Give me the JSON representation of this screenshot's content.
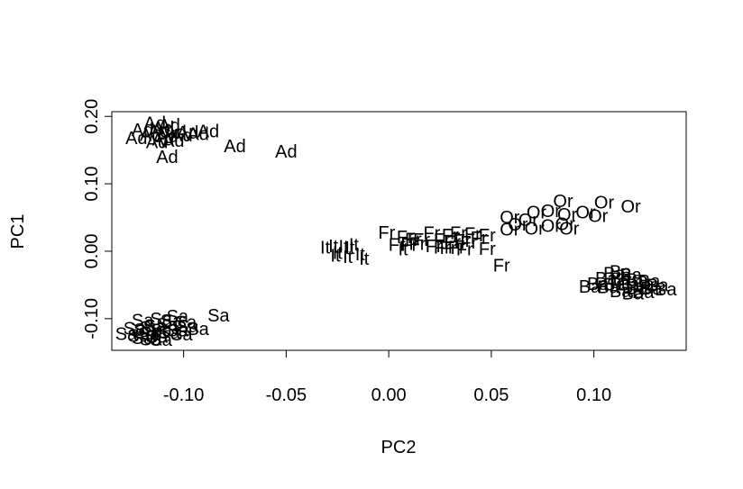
{
  "chart_data": {
    "type": "scatter",
    "title": "",
    "xlabel": "PC2",
    "ylabel": "PC1",
    "xlim": [
      -0.135,
      0.145
    ],
    "ylim": [
      -0.147,
      0.207
    ],
    "xticks": [
      {
        "value": -0.1,
        "label": "-0.10"
      },
      {
        "value": -0.05,
        "label": "-0.05"
      },
      {
        "value": 0.0,
        "label": "0.00"
      },
      {
        "value": 0.05,
        "label": "0.05"
      },
      {
        "value": 0.1,
        "label": "0.10"
      }
    ],
    "yticks": [
      {
        "value": -0.1,
        "label": "-0.10"
      },
      {
        "value": 0.0,
        "label": "0.00"
      },
      {
        "value": 0.1,
        "label": "0.10"
      },
      {
        "value": 0.2,
        "label": "0.20"
      }
    ],
    "grid": false,
    "point_style": "text-labels",
    "groups": [
      {
        "label": "Ad",
        "points": [
          [
            -0.114,
            0.19
          ],
          [
            -0.107,
            0.187
          ],
          [
            -0.11,
            0.183
          ],
          [
            -0.12,
            0.18
          ],
          [
            -0.112,
            0.178
          ],
          [
            -0.104,
            0.177
          ],
          [
            -0.098,
            0.176
          ],
          [
            -0.093,
            0.174
          ],
          [
            -0.116,
            0.173
          ],
          [
            -0.101,
            0.172
          ],
          [
            -0.108,
            0.171
          ],
          [
            -0.088,
            0.178
          ],
          [
            -0.123,
            0.168
          ],
          [
            -0.11,
            0.166
          ],
          [
            -0.105,
            0.164
          ],
          [
            -0.113,
            0.162
          ],
          [
            -0.075,
            0.156
          ],
          [
            -0.05,
            0.148
          ],
          [
            -0.108,
            0.14
          ]
        ]
      },
      {
        "label": "Sa",
        "points": [
          [
            -0.083,
            -0.095
          ],
          [
            -0.103,
            -0.096
          ],
          [
            -0.111,
            -0.1
          ],
          [
            -0.12,
            -0.102
          ],
          [
            -0.106,
            -0.103
          ],
          [
            -0.099,
            -0.105
          ],
          [
            -0.108,
            -0.108
          ],
          [
            -0.114,
            -0.11
          ],
          [
            -0.098,
            -0.111
          ],
          [
            -0.116,
            -0.113
          ],
          [
            -0.124,
            -0.114
          ],
          [
            -0.093,
            -0.115
          ],
          [
            -0.119,
            -0.116
          ],
          [
            -0.111,
            -0.117
          ],
          [
            -0.103,
            -0.117
          ],
          [
            -0.107,
            -0.12
          ],
          [
            -0.128,
            -0.122
          ],
          [
            -0.117,
            -0.122
          ],
          [
            -0.101,
            -0.123
          ],
          [
            -0.122,
            -0.125
          ],
          [
            -0.113,
            -0.126
          ],
          [
            -0.12,
            -0.128
          ],
          [
            -0.116,
            -0.13
          ],
          [
            -0.111,
            -0.131
          ]
        ]
      },
      {
        "label": "It",
        "points": [
          [
            -0.017,
            0.01
          ],
          [
            -0.027,
            0.008
          ],
          [
            -0.022,
            0.007
          ],
          [
            -0.031,
            0.006
          ],
          [
            -0.019,
            0.005
          ],
          [
            -0.025,
            -0.002
          ],
          [
            -0.014,
            -0.004
          ],
          [
            -0.026,
            -0.006
          ],
          [
            -0.02,
            -0.008
          ],
          [
            -0.012,
            -0.011
          ],
          [
            0.007,
            0.003
          ]
        ]
      },
      {
        "label": "Fr",
        "points": [
          [
            -0.001,
            0.028
          ],
          [
            0.021,
            0.027
          ],
          [
            0.034,
            0.027
          ],
          [
            0.041,
            0.026
          ],
          [
            0.03,
            0.024
          ],
          [
            0.048,
            0.024
          ],
          [
            0.008,
            0.021
          ],
          [
            0.044,
            0.02
          ],
          [
            0.012,
            0.018
          ],
          [
            0.016,
            0.017
          ],
          [
            0.026,
            0.017
          ],
          [
            0.036,
            0.016
          ],
          [
            0.031,
            0.014
          ],
          [
            0.039,
            0.013
          ],
          [
            0.004,
            0.01
          ],
          [
            0.01,
            0.01
          ],
          [
            0.014,
            0.011
          ],
          [
            0.022,
            0.008
          ],
          [
            0.026,
            0.006
          ],
          [
            0.033,
            0.006
          ],
          [
            0.029,
            0.005
          ],
          [
            0.037,
            0.003
          ],
          [
            0.048,
            0.004
          ],
          [
            0.055,
            -0.021
          ]
        ]
      },
      {
        "label": "Or",
        "points": [
          [
            0.085,
            0.075
          ],
          [
            0.105,
            0.073
          ],
          [
            0.118,
            0.067
          ],
          [
            0.072,
            0.058
          ],
          [
            0.079,
            0.06
          ],
          [
            0.096,
            0.058
          ],
          [
            0.087,
            0.055
          ],
          [
            0.102,
            0.053
          ],
          [
            0.059,
            0.051
          ],
          [
            0.068,
            0.047
          ],
          [
            0.063,
            0.04
          ],
          [
            0.079,
            0.038
          ],
          [
            0.086,
            0.041
          ],
          [
            0.059,
            0.033
          ],
          [
            0.071,
            0.034
          ],
          [
            0.088,
            0.034
          ]
        ]
      },
      {
        "label": "Ba",
        "points": [
          [
            0.113,
            -0.03
          ],
          [
            0.11,
            -0.033
          ],
          [
            0.118,
            -0.035
          ],
          [
            0.106,
            -0.04
          ],
          [
            0.113,
            -0.041
          ],
          [
            0.121,
            -0.042
          ],
          [
            0.127,
            -0.044
          ],
          [
            0.102,
            -0.048
          ],
          [
            0.11,
            -0.049
          ],
          [
            0.117,
            -0.049
          ],
          [
            0.124,
            -0.048
          ],
          [
            0.131,
            -0.05
          ],
          [
            0.098,
            -0.052
          ],
          [
            0.107,
            -0.053
          ],
          [
            0.121,
            -0.054
          ],
          [
            0.128,
            -0.055
          ],
          [
            0.135,
            -0.056
          ],
          [
            0.113,
            -0.059
          ],
          [
            0.124,
            -0.06
          ],
          [
            0.119,
            -0.062
          ]
        ]
      }
    ]
  }
}
